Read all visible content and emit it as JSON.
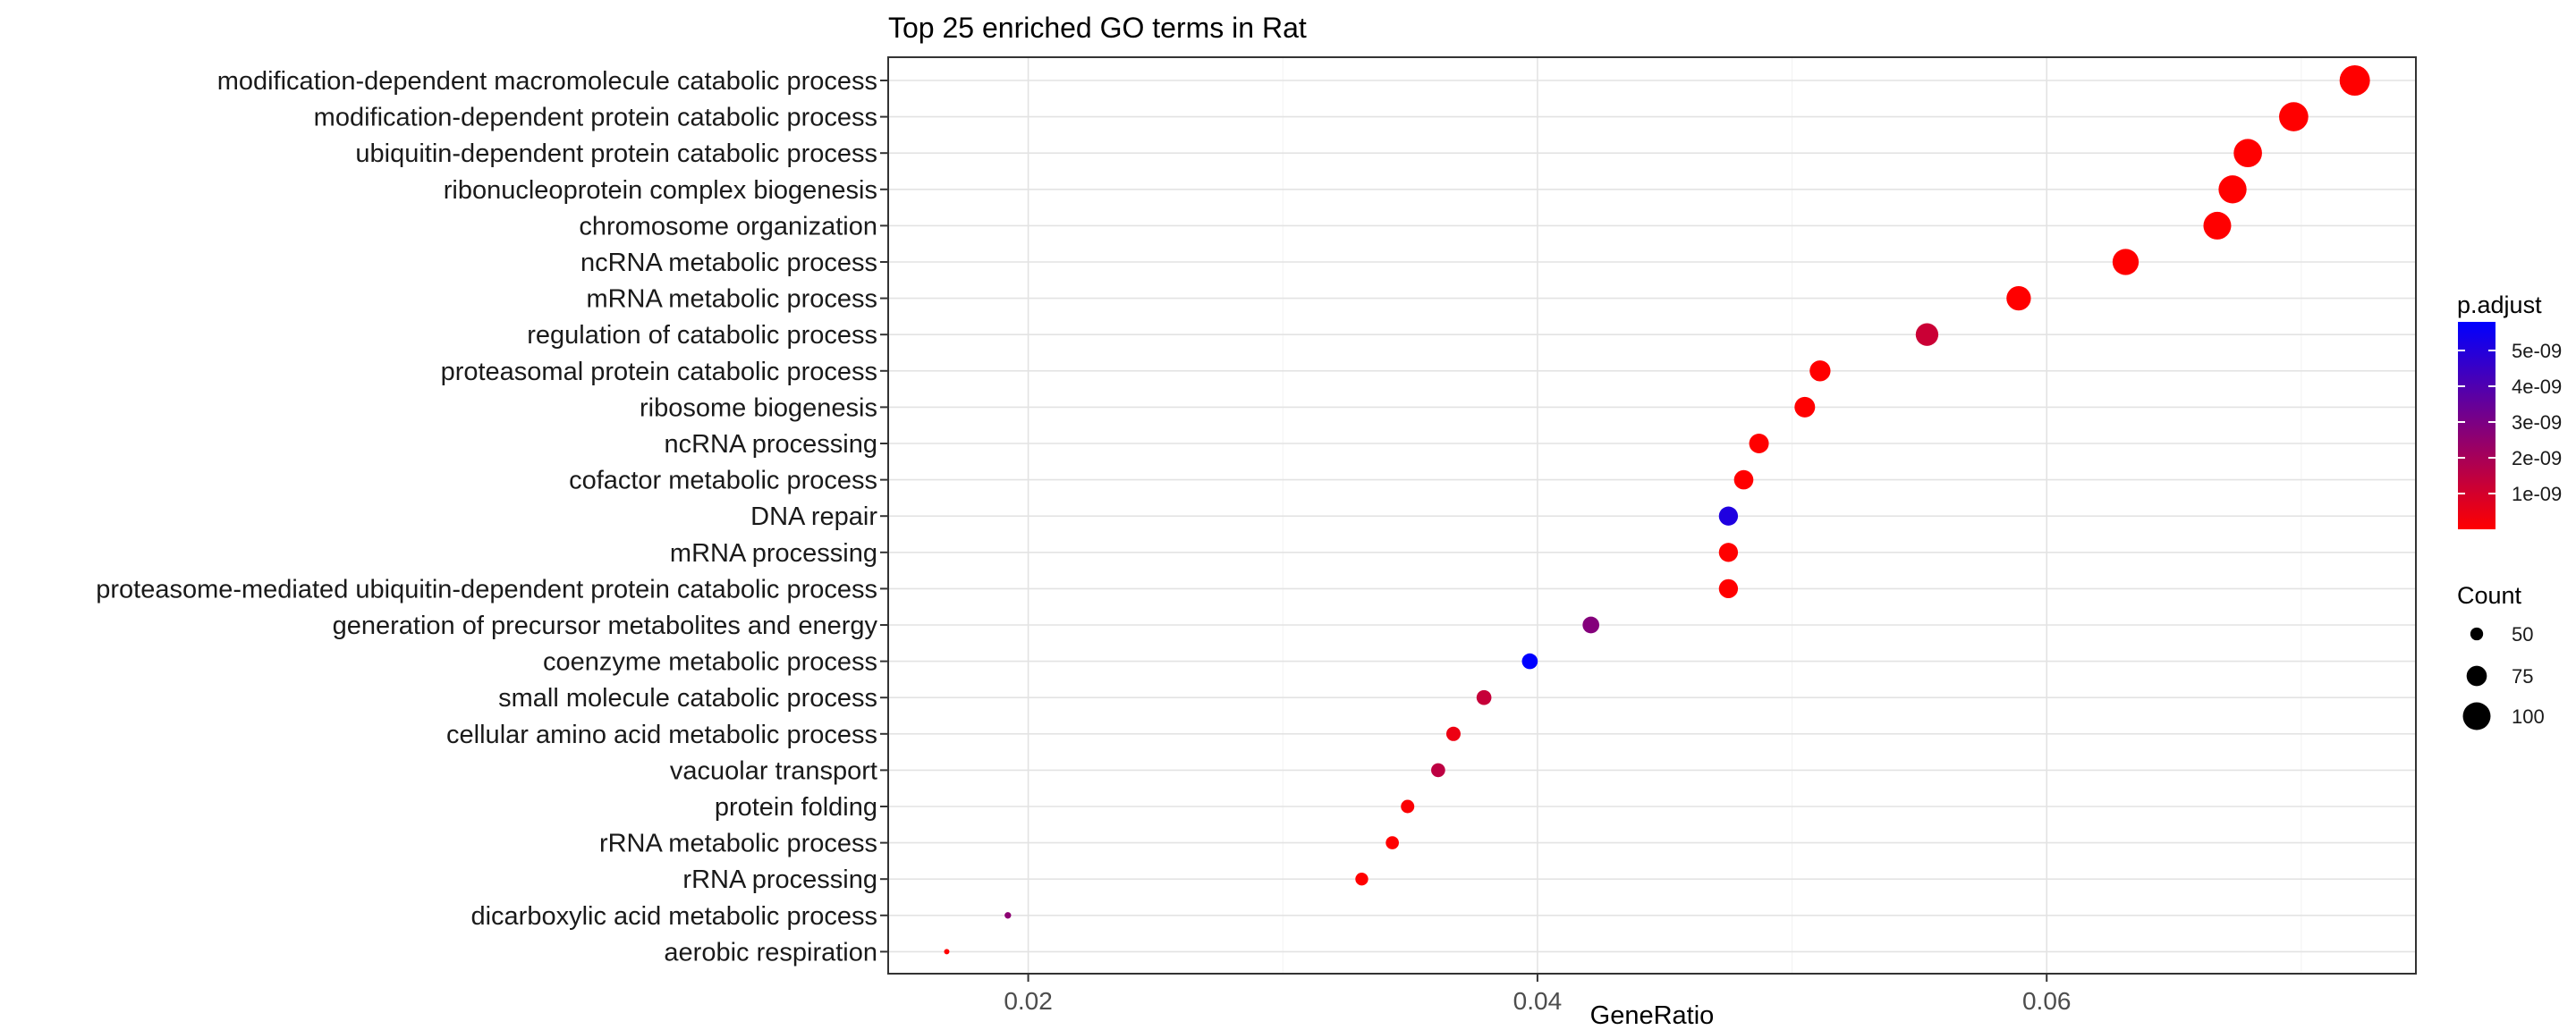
{
  "chart_data": {
    "type": "scatter",
    "title": "Top 25 enriched GO terms in Rat",
    "xlabel": "GeneRatio",
    "ylabel": "",
    "xlim": [
      0.0145,
      0.0745
    ],
    "xticks": [
      0.02,
      0.04,
      0.06
    ],
    "xtick_labels": [
      "0.02",
      "0.04",
      "0.06"
    ],
    "grid": true,
    "color_legend": {
      "title": "p.adjust",
      "range": [
        0,
        5.8e-09
      ],
      "low_color": "#ff0000",
      "high_color": "#0000ff",
      "ticks": [
        1e-09,
        2e-09,
        3e-09,
        4e-09,
        5e-09
      ],
      "tick_labels": [
        "1e-09",
        "2e-09",
        "3e-09",
        "4e-09",
        "5e-09"
      ],
      "placement": "right"
    },
    "size_legend": {
      "title": "Count",
      "values": [
        50,
        75,
        100
      ],
      "labels": [
        "50",
        "75",
        "100"
      ],
      "placement": "right"
    },
    "terms": [
      {
        "label": "modification-dependent macromolecule catabolic process",
        "generatio": 0.0721,
        "count": 109,
        "padjust": 1e-12
      },
      {
        "label": "modification-dependent protein catabolic process",
        "generatio": 0.0697,
        "count": 105,
        "padjust": 1e-12
      },
      {
        "label": "ubiquitin-dependent protein catabolic process",
        "generatio": 0.0679,
        "count": 102,
        "padjust": 1e-12
      },
      {
        "label": "ribonucleoprotein complex biogenesis",
        "generatio": 0.0673,
        "count": 101,
        "padjust": 1e-12
      },
      {
        "label": "chromosome organization",
        "generatio": 0.0667,
        "count": 100,
        "padjust": 1e-12
      },
      {
        "label": "ncRNA metabolic process",
        "generatio": 0.0631,
        "count": 95,
        "padjust": 1e-12
      },
      {
        "label": "mRNA metabolic process",
        "generatio": 0.0589,
        "count": 89,
        "padjust": 1e-11
      },
      {
        "label": "regulation of catabolic process",
        "generatio": 0.0553,
        "count": 83,
        "padjust": 1.2e-09
      },
      {
        "label": "proteasomal protein catabolic process",
        "generatio": 0.0511,
        "count": 77,
        "padjust": 1e-11
      },
      {
        "label": "ribosome biogenesis",
        "generatio": 0.0505,
        "count": 76,
        "padjust": 1e-12
      },
      {
        "label": "ncRNA processing",
        "generatio": 0.0487,
        "count": 73,
        "padjust": 1e-12
      },
      {
        "label": "cofactor metabolic process",
        "generatio": 0.0481,
        "count": 72,
        "padjust": 1e-11
      },
      {
        "label": "DNA repair",
        "generatio": 0.0475,
        "count": 71,
        "padjust": 5.1e-09
      },
      {
        "label": "mRNA processing",
        "generatio": 0.0475,
        "count": 71,
        "padjust": 1e-11
      },
      {
        "label": "proteasome-mediated ubiquitin-dependent protein catabolic process",
        "generatio": 0.0475,
        "count": 71,
        "padjust": 1e-11
      },
      {
        "label": "generation of precursor metabolites and energy",
        "generatio": 0.0421,
        "count": 63,
        "padjust": 2.8e-09
      },
      {
        "label": "coenzyme metabolic process",
        "generatio": 0.0397,
        "count": 60,
        "padjust": 5.8e-09
      },
      {
        "label": "small molecule catabolic process",
        "generatio": 0.0379,
        "count": 57,
        "padjust": 1.3e-09
      },
      {
        "label": "cellular amino acid metabolic process",
        "generatio": 0.0367,
        "count": 55,
        "padjust": 4e-10
      },
      {
        "label": "vacuolar transport",
        "generatio": 0.0361,
        "count": 54,
        "padjust": 1.5e-09
      },
      {
        "label": "protein folding",
        "generatio": 0.0349,
        "count": 52,
        "padjust": 1e-10
      },
      {
        "label": "rRNA metabolic process",
        "generatio": 0.0343,
        "count": 51,
        "padjust": 1e-11
      },
      {
        "label": "rRNA processing",
        "generatio": 0.0331,
        "count": 50,
        "padjust": 1e-11
      },
      {
        "label": "dicarboxylic acid metabolic process",
        "generatio": 0.0192,
        "count": 29,
        "padjust": 2.6e-09
      },
      {
        "label": "aerobic respiration",
        "generatio": 0.0168,
        "count": 25,
        "padjust": 1e-11
      }
    ]
  }
}
